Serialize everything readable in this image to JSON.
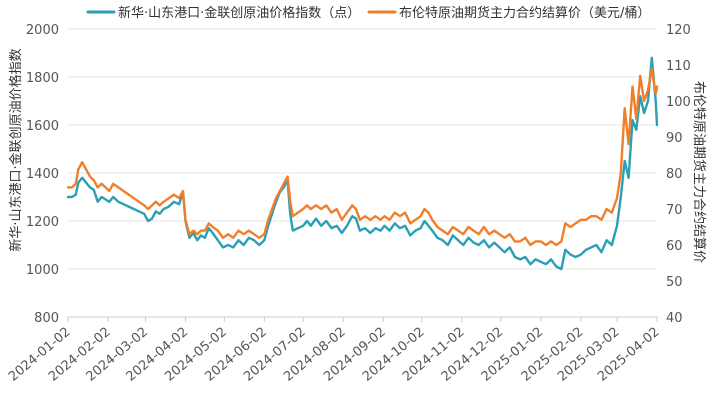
{
  "chart_data": {
    "type": "line",
    "title": "",
    "legend": {
      "placement": "top",
      "entries": [
        "新华·山东港口·金联创原油价格指数（点）",
        "布伦特原油期货主力合约结算价（美元/桶）"
      ]
    },
    "y_left_label": "新华·山东港口·金联创原油价格指数",
    "y_right_label": "布伦特原油期货主力合约结算价",
    "y_left_range": [
      800,
      2000
    ],
    "y_right_range": [
      40,
      120
    ],
    "y_left_ticks": [
      "800",
      "1000",
      "1200",
      "1400",
      "1600",
      "1800",
      "2000"
    ],
    "y_right_ticks": [
      "40",
      "50",
      "60",
      "70",
      "80",
      "90",
      "100",
      "110",
      "120"
    ],
    "x_ticks": [
      "2024-01-02",
      "2024-02-02",
      "2024-03-02",
      "2024-04-02",
      "2024-05-02",
      "2024-06-02",
      "2024-07-02",
      "2024-08-02",
      "2024-09-02",
      "2024-10-02",
      "2024-11-02",
      "2024-12-02",
      "2025-01-02",
      "2025-02-02",
      "2025-03-02",
      "2025-04-02"
    ],
    "x_range": [
      "2024-01-02",
      "2025-04-02"
    ],
    "grid": "horizontal",
    "series": [
      {
        "name": "新华·山东港口·金联创原油价格指数（点）",
        "axis": "left",
        "color": "#2a9fb5",
        "points": [
          [
            "2024-01-02",
            1300
          ],
          [
            "2024-01-05",
            1300
          ],
          [
            "2024-01-08",
            1310
          ],
          [
            "2024-01-10",
            1360
          ],
          [
            "2024-01-13",
            1380
          ],
          [
            "2024-01-16",
            1360
          ],
          [
            "2024-01-19",
            1340
          ],
          [
            "2024-01-22",
            1330
          ],
          [
            "2024-01-25",
            1280
          ],
          [
            "2024-01-28",
            1300
          ],
          [
            "2024-01-31",
            1290
          ],
          [
            "2024-02-03",
            1280
          ],
          [
            "2024-02-06",
            1300
          ],
          [
            "2024-02-10",
            1280
          ],
          [
            "2024-02-14",
            1270
          ],
          [
            "2024-02-18",
            1260
          ],
          [
            "2024-02-22",
            1250
          ],
          [
            "2024-02-26",
            1240
          ],
          [
            "2024-03-01",
            1230
          ],
          [
            "2024-03-04",
            1200
          ],
          [
            "2024-03-07",
            1210
          ],
          [
            "2024-03-10",
            1240
          ],
          [
            "2024-03-13",
            1230
          ],
          [
            "2024-03-16",
            1250
          ],
          [
            "2024-03-20",
            1260
          ],
          [
            "2024-03-24",
            1280
          ],
          [
            "2024-03-28",
            1270
          ],
          [
            "2024-03-31",
            1320
          ],
          [
            "2024-04-02",
            1200
          ],
          [
            "2024-04-05",
            1130
          ],
          [
            "2024-04-08",
            1150
          ],
          [
            "2024-04-11",
            1120
          ],
          [
            "2024-04-14",
            1140
          ],
          [
            "2024-04-17",
            1130
          ],
          [
            "2024-04-20",
            1170
          ],
          [
            "2024-04-23",
            1150
          ],
          [
            "2024-04-27",
            1120
          ],
          [
            "2024-05-01",
            1090
          ],
          [
            "2024-05-05",
            1100
          ],
          [
            "2024-05-09",
            1090
          ],
          [
            "2024-05-13",
            1120
          ],
          [
            "2024-05-17",
            1100
          ],
          [
            "2024-05-21",
            1130
          ],
          [
            "2024-05-25",
            1120
          ],
          [
            "2024-05-29",
            1100
          ],
          [
            "2024-06-02",
            1120
          ],
          [
            "2024-06-05",
            1180
          ],
          [
            "2024-06-08",
            1230
          ],
          [
            "2024-06-11",
            1280
          ],
          [
            "2024-06-14",
            1320
          ],
          [
            "2024-06-17",
            1340
          ],
          [
            "2024-06-20",
            1370
          ],
          [
            "2024-06-22",
            1230
          ],
          [
            "2024-06-24",
            1160
          ],
          [
            "2024-06-28",
            1170
          ],
          [
            "2024-07-02",
            1180
          ],
          [
            "2024-07-05",
            1200
          ],
          [
            "2024-07-08",
            1180
          ],
          [
            "2024-07-12",
            1210
          ],
          [
            "2024-07-16",
            1180
          ],
          [
            "2024-07-20",
            1200
          ],
          [
            "2024-07-24",
            1170
          ],
          [
            "2024-07-28",
            1180
          ],
          [
            "2024-08-01",
            1150
          ],
          [
            "2024-08-05",
            1180
          ],
          [
            "2024-08-09",
            1220
          ],
          [
            "2024-08-12",
            1210
          ],
          [
            "2024-08-15",
            1160
          ],
          [
            "2024-08-19",
            1170
          ],
          [
            "2024-08-23",
            1150
          ],
          [
            "2024-08-27",
            1170
          ],
          [
            "2024-08-31",
            1160
          ],
          [
            "2024-09-03",
            1180
          ],
          [
            "2024-09-07",
            1160
          ],
          [
            "2024-09-11",
            1190
          ],
          [
            "2024-09-15",
            1170
          ],
          [
            "2024-09-19",
            1180
          ],
          [
            "2024-09-23",
            1140
          ],
          [
            "2024-09-27",
            1160
          ],
          [
            "2024-10-01",
            1170
          ],
          [
            "2024-10-04",
            1200
          ],
          [
            "2024-10-07",
            1180
          ],
          [
            "2024-10-10",
            1160
          ],
          [
            "2024-10-14",
            1130
          ],
          [
            "2024-10-18",
            1120
          ],
          [
            "2024-10-22",
            1100
          ],
          [
            "2024-10-26",
            1140
          ],
          [
            "2024-10-30",
            1120
          ],
          [
            "2024-11-03",
            1100
          ],
          [
            "2024-11-07",
            1130
          ],
          [
            "2024-11-11",
            1110
          ],
          [
            "2024-11-15",
            1100
          ],
          [
            "2024-11-19",
            1120
          ],
          [
            "2024-11-23",
            1090
          ],
          [
            "2024-11-27",
            1110
          ],
          [
            "2024-12-01",
            1090
          ],
          [
            "2024-12-05",
            1070
          ],
          [
            "2024-12-09",
            1090
          ],
          [
            "2024-12-13",
            1050
          ],
          [
            "2024-12-17",
            1040
          ],
          [
            "2024-12-21",
            1050
          ],
          [
            "2024-12-25",
            1020
          ],
          [
            "2024-12-29",
            1040
          ],
          [
            "2025-01-02",
            1030
          ],
          [
            "2025-01-06",
            1020
          ],
          [
            "2025-01-10",
            1040
          ],
          [
            "2025-01-14",
            1010
          ],
          [
            "2025-01-18",
            1000
          ],
          [
            "2025-01-21",
            1080
          ],
          [
            "2025-01-25",
            1060
          ],
          [
            "2025-01-29",
            1050
          ],
          [
            "2025-02-02",
            1060
          ],
          [
            "2025-02-06",
            1080
          ],
          [
            "2025-02-10",
            1090
          ],
          [
            "2025-02-14",
            1100
          ],
          [
            "2025-02-18",
            1070
          ],
          [
            "2025-02-22",
            1120
          ],
          [
            "2025-02-26",
            1100
          ],
          [
            "2025-03-02",
            1180
          ],
          [
            "2025-03-05",
            1300
          ],
          [
            "2025-03-08",
            1450
          ],
          [
            "2025-03-11",
            1380
          ],
          [
            "2025-03-14",
            1620
          ],
          [
            "2025-03-17",
            1580
          ],
          [
            "2025-03-20",
            1720
          ],
          [
            "2025-03-23",
            1650
          ],
          [
            "2025-03-26",
            1700
          ],
          [
            "2025-03-29",
            1880
          ],
          [
            "2025-04-01",
            1700
          ],
          [
            "2025-04-02",
            1600
          ]
        ]
      },
      {
        "name": "布伦特原油期货主力合约结算价（美元/桶）",
        "axis": "right",
        "color": "#f07f2b",
        "points": [
          [
            "2024-01-02",
            76
          ],
          [
            "2024-01-05",
            76
          ],
          [
            "2024-01-08",
            77
          ],
          [
            "2024-01-10",
            81
          ],
          [
            "2024-01-13",
            83
          ],
          [
            "2024-01-16",
            81
          ],
          [
            "2024-01-19",
            79
          ],
          [
            "2024-01-22",
            78
          ],
          [
            "2024-01-25",
            76
          ],
          [
            "2024-01-28",
            77
          ],
          [
            "2024-01-31",
            76
          ],
          [
            "2024-02-03",
            75
          ],
          [
            "2024-02-06",
            77
          ],
          [
            "2024-02-10",
            76
          ],
          [
            "2024-02-14",
            75
          ],
          [
            "2024-02-18",
            74
          ],
          [
            "2024-02-22",
            73
          ],
          [
            "2024-02-26",
            72
          ],
          [
            "2024-03-01",
            71
          ],
          [
            "2024-03-04",
            70
          ],
          [
            "2024-03-07",
            71
          ],
          [
            "2024-03-10",
            72
          ],
          [
            "2024-03-13",
            71
          ],
          [
            "2024-03-16",
            72
          ],
          [
            "2024-03-20",
            73
          ],
          [
            "2024-03-24",
            74
          ],
          [
            "2024-03-28",
            73
          ],
          [
            "2024-03-31",
            75
          ],
          [
            "2024-04-02",
            67
          ],
          [
            "2024-04-05",
            63
          ],
          [
            "2024-04-08",
            64
          ],
          [
            "2024-04-11",
            63
          ],
          [
            "2024-04-14",
            64
          ],
          [
            "2024-04-17",
            64
          ],
          [
            "2024-04-20",
            66
          ],
          [
            "2024-04-23",
            65
          ],
          [
            "2024-04-27",
            64
          ],
          [
            "2024-05-01",
            62
          ],
          [
            "2024-05-05",
            63
          ],
          [
            "2024-05-09",
            62
          ],
          [
            "2024-05-13",
            64
          ],
          [
            "2024-05-17",
            63
          ],
          [
            "2024-05-21",
            64
          ],
          [
            "2024-05-25",
            63
          ],
          [
            "2024-05-29",
            62
          ],
          [
            "2024-06-02",
            63
          ],
          [
            "2024-06-05",
            67
          ],
          [
            "2024-06-08",
            70
          ],
          [
            "2024-06-11",
            73
          ],
          [
            "2024-06-14",
            75
          ],
          [
            "2024-06-17",
            77
          ],
          [
            "2024-06-20",
            79
          ],
          [
            "2024-06-22",
            72
          ],
          [
            "2024-06-24",
            68
          ],
          [
            "2024-06-28",
            69
          ],
          [
            "2024-07-02",
            70
          ],
          [
            "2024-07-05",
            71
          ],
          [
            "2024-07-08",
            70
          ],
          [
            "2024-07-12",
            71
          ],
          [
            "2024-07-16",
            70
          ],
          [
            "2024-07-20",
            71
          ],
          [
            "2024-07-24",
            69
          ],
          [
            "2024-07-28",
            70
          ],
          [
            "2024-08-01",
            67
          ],
          [
            "2024-08-05",
            69
          ],
          [
            "2024-08-09",
            71
          ],
          [
            "2024-08-12",
            70
          ],
          [
            "2024-08-15",
            67
          ],
          [
            "2024-08-19",
            68
          ],
          [
            "2024-08-23",
            67
          ],
          [
            "2024-08-27",
            68
          ],
          [
            "2024-08-31",
            67
          ],
          [
            "2024-09-03",
            68
          ],
          [
            "2024-09-07",
            67
          ],
          [
            "2024-09-11",
            69
          ],
          [
            "2024-09-15",
            68
          ],
          [
            "2024-09-19",
            69
          ],
          [
            "2024-09-23",
            66
          ],
          [
            "2024-09-27",
            67
          ],
          [
            "2024-10-01",
            68
          ],
          [
            "2024-10-04",
            70
          ],
          [
            "2024-10-07",
            69
          ],
          [
            "2024-10-10",
            67
          ],
          [
            "2024-10-14",
            65
          ],
          [
            "2024-10-18",
            64
          ],
          [
            "2024-10-22",
            63
          ],
          [
            "2024-10-26",
            65
          ],
          [
            "2024-10-30",
            64
          ],
          [
            "2024-11-03",
            63
          ],
          [
            "2024-11-07",
            65
          ],
          [
            "2024-11-11",
            64
          ],
          [
            "2024-11-15",
            63
          ],
          [
            "2024-11-19",
            65
          ],
          [
            "2024-11-23",
            63
          ],
          [
            "2024-11-27",
            64
          ],
          [
            "2024-12-01",
            63
          ],
          [
            "2024-12-05",
            62
          ],
          [
            "2024-12-09",
            63
          ],
          [
            "2024-12-13",
            61
          ],
          [
            "2024-12-17",
            61
          ],
          [
            "2024-12-21",
            62
          ],
          [
            "2024-12-25",
            60
          ],
          [
            "2024-12-29",
            61
          ],
          [
            "2025-01-02",
            61
          ],
          [
            "2025-01-06",
            60
          ],
          [
            "2025-01-10",
            61
          ],
          [
            "2025-01-14",
            60
          ],
          [
            "2025-01-18",
            61
          ],
          [
            "2025-01-21",
            66
          ],
          [
            "2025-01-25",
            65
          ],
          [
            "2025-01-29",
            66
          ],
          [
            "2025-02-02",
            67
          ],
          [
            "2025-02-06",
            67
          ],
          [
            "2025-02-10",
            68
          ],
          [
            "2025-02-14",
            68
          ],
          [
            "2025-02-18",
            67
          ],
          [
            "2025-02-22",
            70
          ],
          [
            "2025-02-26",
            69
          ],
          [
            "2025-03-02",
            73
          ],
          [
            "2025-03-05",
            80
          ],
          [
            "2025-03-08",
            98
          ],
          [
            "2025-03-11",
            88
          ],
          [
            "2025-03-14",
            104
          ],
          [
            "2025-03-17",
            95
          ],
          [
            "2025-03-20",
            107
          ],
          [
            "2025-03-23",
            100
          ],
          [
            "2025-03-26",
            103
          ],
          [
            "2025-03-29",
            109
          ],
          [
            "2025-04-01",
            102
          ],
          [
            "2025-04-02",
            104
          ]
        ]
      }
    ]
  }
}
